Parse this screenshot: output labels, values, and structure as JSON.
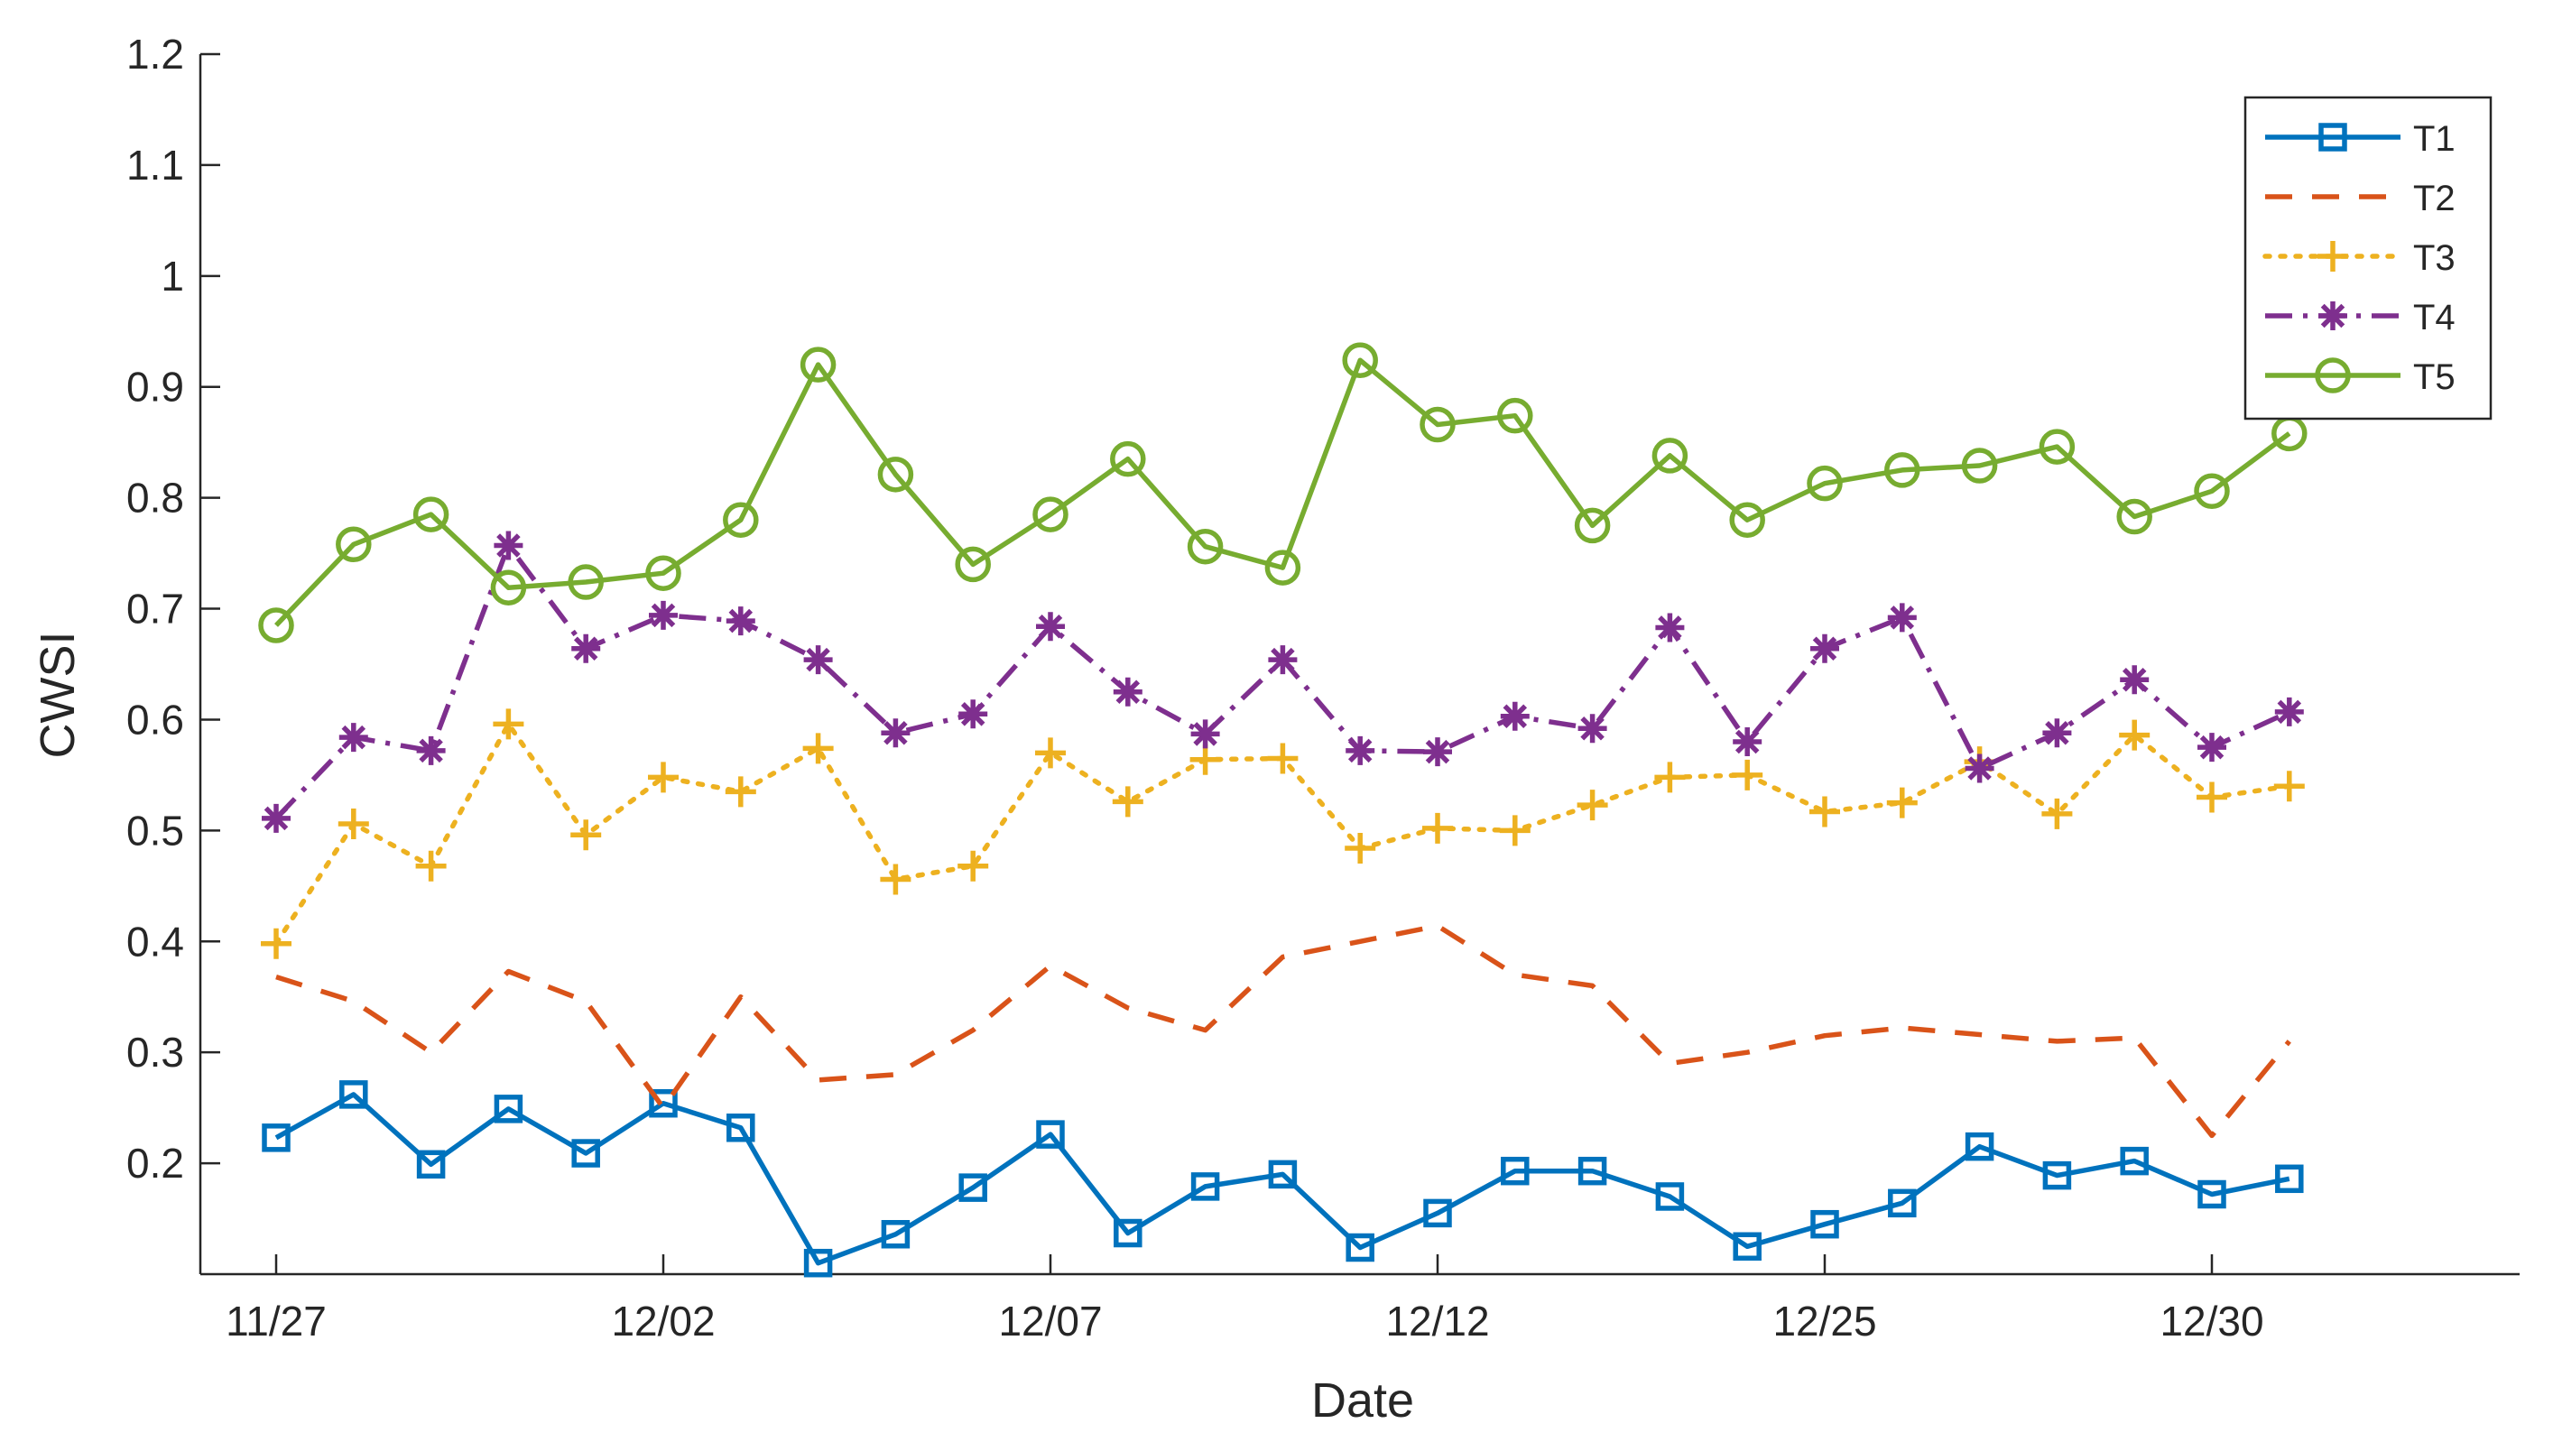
{
  "chart_data": {
    "type": "line",
    "title": "",
    "xlabel": "Date",
    "ylabel": "CWSI",
    "ylim": [
      0.1,
      1.2
    ],
    "yticks": [
      "0.2",
      "0.3",
      "0.4",
      "0.5",
      "0.6",
      "0.7",
      "0.8",
      "0.9",
      "1",
      "1.1",
      "1.2"
    ],
    "xticks": [
      "11/27",
      "12/02",
      "12/07",
      "12/12",
      "12/25",
      "12/30"
    ],
    "legend_position": "top-right",
    "grid": false,
    "series": [
      {
        "name": "T1",
        "color": "#0072BD",
        "line_style": "solid",
        "marker": "square",
        "values": [
          0.223,
          0.262,
          0.199,
          0.249,
          0.209,
          0.254,
          0.232,
          0.11,
          0.136,
          0.178,
          0.226,
          0.137,
          0.179,
          0.19,
          0.124,
          0.155,
          0.193,
          0.193,
          0.17,
          0.125,
          0.145,
          0.164,
          0.215,
          0.189,
          0.202,
          0.172,
          0.186
        ]
      },
      {
        "name": "T2",
        "color": "#D95319",
        "line_style": "dashed",
        "marker": "none",
        "values": [
          0.368,
          0.346,
          0.3,
          0.373,
          0.346,
          0.25,
          0.35,
          0.275,
          0.28,
          0.32,
          0.378,
          0.34,
          0.32,
          0.386,
          0.4,
          0.414,
          0.37,
          0.36,
          0.29,
          0.3,
          0.315,
          0.322,
          0.316,
          0.31,
          0.313,
          0.225,
          0.31
        ]
      },
      {
        "name": "T3",
        "color": "#EDB120",
        "line_style": "dotted",
        "marker": "plus",
        "values": [
          0.398,
          0.506,
          0.468,
          0.596,
          0.496,
          0.548,
          0.535,
          0.574,
          0.456,
          0.468,
          0.57,
          0.526,
          0.564,
          0.565,
          0.484,
          0.502,
          0.5,
          0.523,
          0.548,
          0.55,
          0.517,
          0.525,
          0.562,
          0.515,
          0.586,
          0.53,
          0.54
        ]
      },
      {
        "name": "T4",
        "color": "#7E2F8E",
        "line_style": "dashdot",
        "marker": "asterisk",
        "values": [
          0.511,
          0.584,
          0.572,
          0.757,
          0.664,
          0.694,
          0.689,
          0.654,
          0.588,
          0.605,
          0.684,
          0.625,
          0.587,
          0.654,
          0.572,
          0.571,
          0.603,
          0.592,
          0.683,
          0.58,
          0.664,
          0.692,
          0.556,
          0.588,
          0.636,
          0.575,
          0.607
        ]
      },
      {
        "name": "T5",
        "color": "#77AC30",
        "line_style": "solid",
        "marker": "circle",
        "values": [
          0.685,
          0.758,
          0.785,
          0.719,
          0.724,
          0.732,
          0.78,
          0.92,
          0.821,
          0.74,
          0.785,
          0.835,
          0.756,
          0.737,
          0.924,
          0.866,
          0.874,
          0.775,
          0.838,
          0.78,
          0.813,
          0.825,
          0.829,
          0.846,
          0.783,
          0.806,
          0.858
        ]
      }
    ]
  }
}
